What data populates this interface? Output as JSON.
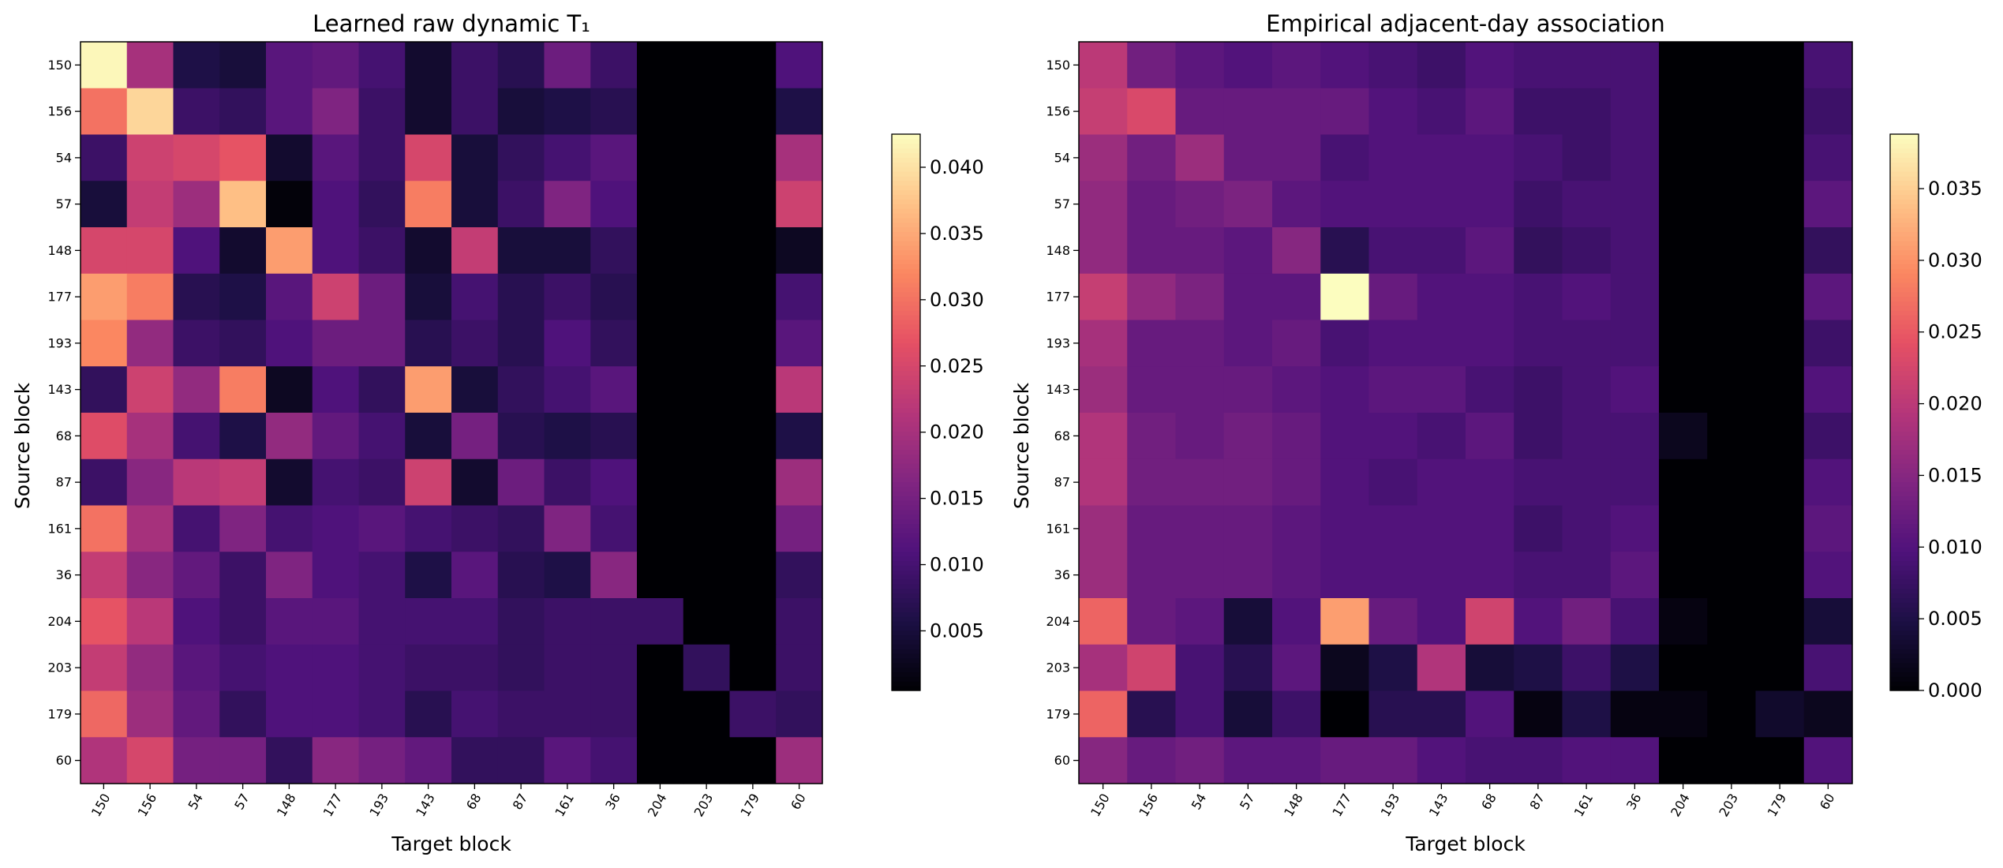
{
  "chart_data": [
    {
      "type": "heatmap",
      "title": "Learned raw dynamic T₁",
      "xlabel": "Target block",
      "ylabel": "Source block",
      "x_categories": [
        "150",
        "156",
        "54",
        "57",
        "148",
        "177",
        "193",
        "143",
        "68",
        "87",
        "161",
        "36",
        "204",
        "203",
        "179",
        "60"
      ],
      "y_categories": [
        "150",
        "156",
        "54",
        "57",
        "148",
        "177",
        "193",
        "143",
        "68",
        "87",
        "161",
        "36",
        "204",
        "203",
        "179",
        "60"
      ],
      "colormap": "magma",
      "vmin": 0.0005,
      "vmax": 0.0425,
      "colorbar_ticks": [
        "0.005",
        "0.010",
        "0.015",
        "0.020",
        "0.025",
        "0.030",
        "0.035",
        "0.040"
      ],
      "values": [
        [
          0.042,
          0.02,
          0.006,
          0.005,
          0.012,
          0.013,
          0.01,
          0.004,
          0.009,
          0.007,
          0.014,
          0.009,
          0,
          0,
          0,
          0.011
        ],
        [
          0.03,
          0.039,
          0.009,
          0.008,
          0.012,
          0.016,
          0.009,
          0.004,
          0.009,
          0.005,
          0.006,
          0.007,
          0,
          0,
          0,
          0.006
        ],
        [
          0.009,
          0.024,
          0.025,
          0.027,
          0.004,
          0.012,
          0.009,
          0.025,
          0.005,
          0.008,
          0.01,
          0.012,
          0,
          0,
          0,
          0.02
        ],
        [
          0.005,
          0.023,
          0.019,
          0.037,
          0.001,
          0.011,
          0.008,
          0.031,
          0.005,
          0.009,
          0.016,
          0.011,
          0,
          0,
          0,
          0.024
        ],
        [
          0.025,
          0.025,
          0.011,
          0.004,
          0.034,
          0.011,
          0.009,
          0.004,
          0.023,
          0.005,
          0.005,
          0.008,
          0,
          0,
          0,
          0.003
        ],
        [
          0.034,
          0.031,
          0.007,
          0.006,
          0.012,
          0.024,
          0.014,
          0.005,
          0.01,
          0.007,
          0.009,
          0.007,
          0,
          0,
          0,
          0.01
        ],
        [
          0.032,
          0.018,
          0.009,
          0.008,
          0.011,
          0.014,
          0.014,
          0.007,
          0.009,
          0.007,
          0.011,
          0.008,
          0,
          0,
          0,
          0.012
        ],
        [
          0.008,
          0.024,
          0.018,
          0.031,
          0.003,
          0.011,
          0.008,
          0.034,
          0.005,
          0.008,
          0.01,
          0.012,
          0,
          0,
          0,
          0.022
        ],
        [
          0.026,
          0.02,
          0.01,
          0.006,
          0.018,
          0.013,
          0.01,
          0.005,
          0.015,
          0.007,
          0.006,
          0.007,
          0,
          0,
          0,
          0.006
        ],
        [
          0.009,
          0.017,
          0.022,
          0.023,
          0.004,
          0.01,
          0.009,
          0.024,
          0.004,
          0.014,
          0.009,
          0.011,
          0,
          0,
          0,
          0.019
        ],
        [
          0.03,
          0.02,
          0.01,
          0.016,
          0.01,
          0.011,
          0.012,
          0.01,
          0.009,
          0.008,
          0.016,
          0.01,
          0,
          0,
          0,
          0.015
        ],
        [
          0.023,
          0.017,
          0.013,
          0.009,
          0.016,
          0.011,
          0.01,
          0.006,
          0.012,
          0.007,
          0.006,
          0.017,
          0,
          0,
          0,
          0.008
        ],
        [
          0.027,
          0.022,
          0.011,
          0.009,
          0.012,
          0.012,
          0.01,
          0.01,
          0.01,
          0.008,
          0.009,
          0.009,
          0.009,
          0,
          0,
          0.009
        ],
        [
          0.023,
          0.018,
          0.012,
          0.01,
          0.011,
          0.011,
          0.01,
          0.009,
          0.009,
          0.008,
          0.009,
          0.009,
          0,
          0.008,
          0,
          0.009
        ],
        [
          0.029,
          0.019,
          0.013,
          0.008,
          0.011,
          0.011,
          0.01,
          0.007,
          0.01,
          0.009,
          0.009,
          0.009,
          0,
          0,
          0.009,
          0.008
        ],
        [
          0.021,
          0.025,
          0.015,
          0.015,
          0.008,
          0.017,
          0.015,
          0.013,
          0.008,
          0.008,
          0.012,
          0.01,
          0,
          0,
          0,
          0.019
        ]
      ]
    },
    {
      "type": "heatmap",
      "title": "Empirical adjacent-day association",
      "xlabel": "Target block",
      "ylabel": "Source block",
      "x_categories": [
        "150",
        "156",
        "54",
        "57",
        "148",
        "177",
        "193",
        "143",
        "68",
        "87",
        "161",
        "36",
        "204",
        "203",
        "179",
        "60"
      ],
      "y_categories": [
        "150",
        "156",
        "54",
        "57",
        "148",
        "177",
        "193",
        "143",
        "68",
        "87",
        "161",
        "36",
        "204",
        "203",
        "179",
        "60"
      ],
      "colormap": "magma",
      "vmin": 0.0,
      "vmax": 0.0388,
      "colorbar_ticks": [
        "0.000",
        "0.005",
        "0.010",
        "0.015",
        "0.020",
        "0.025",
        "0.030",
        "0.035"
      ],
      "values": [
        [
          0.02,
          0.013,
          0.011,
          0.01,
          0.011,
          0.01,
          0.009,
          0.008,
          0.01,
          0.009,
          0.009,
          0.009,
          0,
          0,
          0,
          0.009
        ],
        [
          0.021,
          0.023,
          0.012,
          0.012,
          0.012,
          0.012,
          0.01,
          0.009,
          0.011,
          0.008,
          0.008,
          0.009,
          0,
          0,
          0,
          0.008
        ],
        [
          0.017,
          0.013,
          0.017,
          0.012,
          0.012,
          0.009,
          0.01,
          0.01,
          0.01,
          0.009,
          0.008,
          0.009,
          0,
          0,
          0,
          0.009
        ],
        [
          0.016,
          0.012,
          0.013,
          0.014,
          0.011,
          0.01,
          0.01,
          0.01,
          0.01,
          0.008,
          0.009,
          0.009,
          0,
          0,
          0,
          0.011
        ],
        [
          0.016,
          0.012,
          0.012,
          0.011,
          0.015,
          0.006,
          0.009,
          0.009,
          0.011,
          0.007,
          0.008,
          0.009,
          0,
          0,
          0,
          0.007
        ],
        [
          0.021,
          0.016,
          0.014,
          0.011,
          0.011,
          0.039,
          0.012,
          0.01,
          0.01,
          0.009,
          0.01,
          0.009,
          0,
          0,
          0,
          0.011
        ],
        [
          0.018,
          0.012,
          0.012,
          0.011,
          0.012,
          0.009,
          0.01,
          0.01,
          0.01,
          0.009,
          0.009,
          0.009,
          0,
          0,
          0,
          0.008
        ],
        [
          0.017,
          0.012,
          0.012,
          0.012,
          0.011,
          0.01,
          0.011,
          0.011,
          0.009,
          0.008,
          0.009,
          0.01,
          0,
          0,
          0,
          0.01
        ],
        [
          0.019,
          0.013,
          0.012,
          0.013,
          0.012,
          0.01,
          0.01,
          0.009,
          0.011,
          0.008,
          0.009,
          0.009,
          0.002,
          0,
          0,
          0.008
        ],
        [
          0.019,
          0.013,
          0.013,
          0.013,
          0.012,
          0.01,
          0.009,
          0.01,
          0.01,
          0.009,
          0.009,
          0.009,
          0,
          0,
          0,
          0.01
        ],
        [
          0.017,
          0.012,
          0.012,
          0.012,
          0.011,
          0.01,
          0.01,
          0.01,
          0.01,
          0.008,
          0.009,
          0.01,
          0,
          0,
          0,
          0.011
        ],
        [
          0.017,
          0.012,
          0.012,
          0.012,
          0.011,
          0.01,
          0.01,
          0.01,
          0.01,
          0.009,
          0.009,
          0.011,
          0,
          0,
          0,
          0.01
        ],
        [
          0.026,
          0.012,
          0.011,
          0.004,
          0.01,
          0.031,
          0.012,
          0.01,
          0.022,
          0.01,
          0.013,
          0.009,
          0.001,
          0,
          0,
          0.004
        ],
        [
          0.018,
          0.022,
          0.009,
          0.006,
          0.011,
          0.002,
          0.005,
          0.019,
          0.004,
          0.005,
          0.008,
          0.005,
          0,
          0,
          0,
          0.009
        ],
        [
          0.026,
          0.006,
          0.009,
          0.004,
          0.008,
          0.0,
          0.006,
          0.006,
          0.01,
          0.001,
          0.005,
          0.001,
          0.001,
          0,
          0.003,
          0.002
        ],
        [
          0.015,
          0.012,
          0.013,
          0.011,
          0.011,
          0.012,
          0.012,
          0.01,
          0.009,
          0.009,
          0.01,
          0.01,
          0,
          0,
          0,
          0.01
        ]
      ]
    }
  ]
}
